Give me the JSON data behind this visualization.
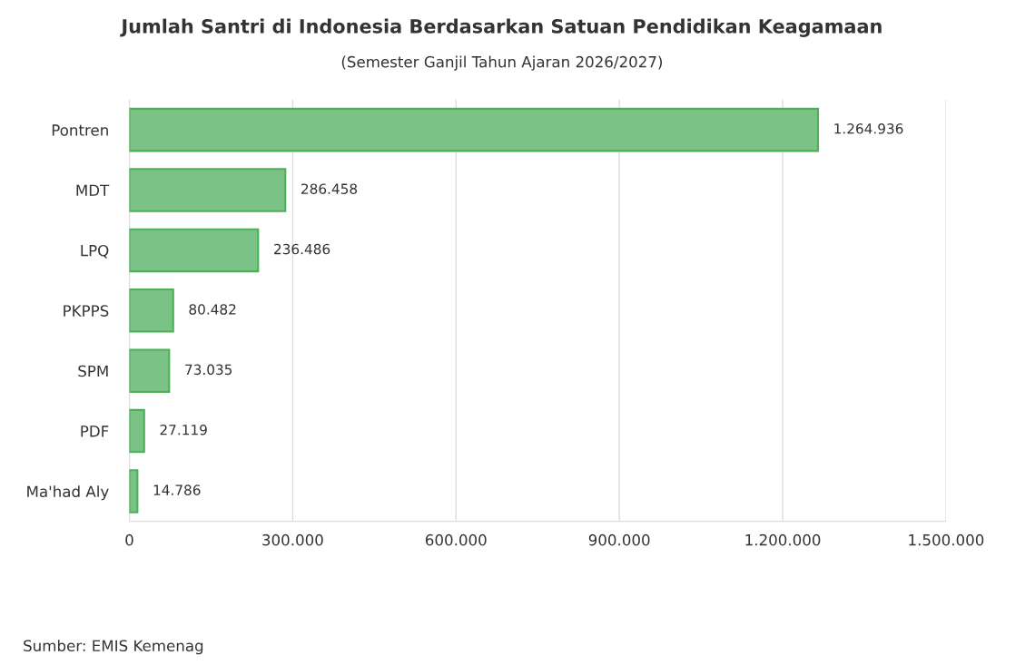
{
  "chart_data": {
    "type": "bar",
    "orientation": "horizontal",
    "title": "Jumlah Santri di Indonesia Berdasarkan Satuan Pendidikan Keagamaan",
    "subtitle": "(Semester Ganjil Tahun Ajaran 2026/2027)",
    "categories": [
      "Pontren",
      "MDT",
      "LPQ",
      "PKPPS",
      "SPM",
      "PDF",
      "Ma'had Aly"
    ],
    "values": [
      1264936,
      286458,
      236486,
      80482,
      73035,
      27119,
      14786
    ],
    "value_labels": [
      "1.264.936",
      "286.458",
      "236.486",
      "80.482",
      "73.035",
      "27.119",
      "14.786"
    ],
    "color": "#7bc287",
    "xlim": [
      0,
      1500000
    ],
    "xticks": [
      0,
      {
        "value": 300000,
        "label": "300.000"
      },
      {
        "value": 600000,
        "label": "600.000"
      },
      {
        "value": 900000,
        "label": "900.000"
      },
      {
        "value": 1200000,
        "label": "1.200.000"
      },
      {
        "value": 1500000,
        "label": "1.500.000"
      }
    ],
    "grid": "x",
    "annotations": [
      "Sumber: EMIS Kemenag"
    ]
  }
}
